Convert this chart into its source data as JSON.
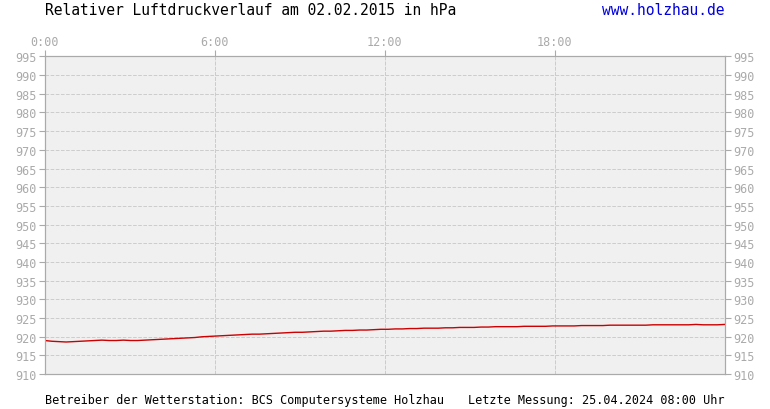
{
  "title": "Relativer Luftdruckverlauf am 02.02.2015 in hPa",
  "url_text": "www.holzhau.de",
  "url_color": "#0000dd",
  "footer_left": "Betreiber der Wetterstation: BCS Computersysteme Holzhau",
  "footer_right": "Letzte Messung: 25.04.2024 08:00 Uhr",
  "x_tick_labels": [
    "0:00",
    "6:00",
    "12:00",
    "18:00"
  ],
  "x_tick_positions": [
    0,
    360,
    720,
    1080
  ],
  "x_min": 0,
  "x_max": 1440,
  "y_min": 910,
  "y_max": 995,
  "y_tick_step": 5,
  "line_color": "#cc0000",
  "line_width": 1.0,
  "background_color": "#ffffff",
  "plot_bg_color": "#f0f0f0",
  "grid_color": "#cccccc",
  "title_fontsize": 10.5,
  "tick_fontsize": 8.5,
  "footer_fontsize": 8.5,
  "pressure_data": [
    919.0,
    918.8,
    918.7,
    918.6,
    918.7,
    918.8,
    918.9,
    919.0,
    919.1,
    919.0,
    919.0,
    919.1,
    919.0,
    919.0,
    919.1,
    919.2,
    919.3,
    919.4,
    919.5,
    919.6,
    919.7,
    919.8,
    920.0,
    920.1,
    920.2,
    920.3,
    920.4,
    920.5,
    920.6,
    920.7,
    920.7,
    920.8,
    920.9,
    921.0,
    921.1,
    921.2,
    921.2,
    921.3,
    921.4,
    921.5,
    921.5,
    921.6,
    921.7,
    921.7,
    921.8,
    921.8,
    921.9,
    922.0,
    922.0,
    922.1,
    922.1,
    922.2,
    922.2,
    922.3,
    922.3,
    922.3,
    922.4,
    922.4,
    922.5,
    922.5,
    922.5,
    922.6,
    922.6,
    922.7,
    922.7,
    922.7,
    922.7,
    922.8,
    922.8,
    922.8,
    922.8,
    922.9,
    922.9,
    922.9,
    922.9,
    923.0,
    923.0,
    923.0,
    923.0,
    923.1,
    923.1,
    923.1,
    923.1,
    923.1,
    923.1,
    923.2,
    923.2,
    923.2,
    923.2,
    923.2,
    923.2,
    923.3,
    923.2,
    923.2,
    923.2,
    923.3
  ]
}
